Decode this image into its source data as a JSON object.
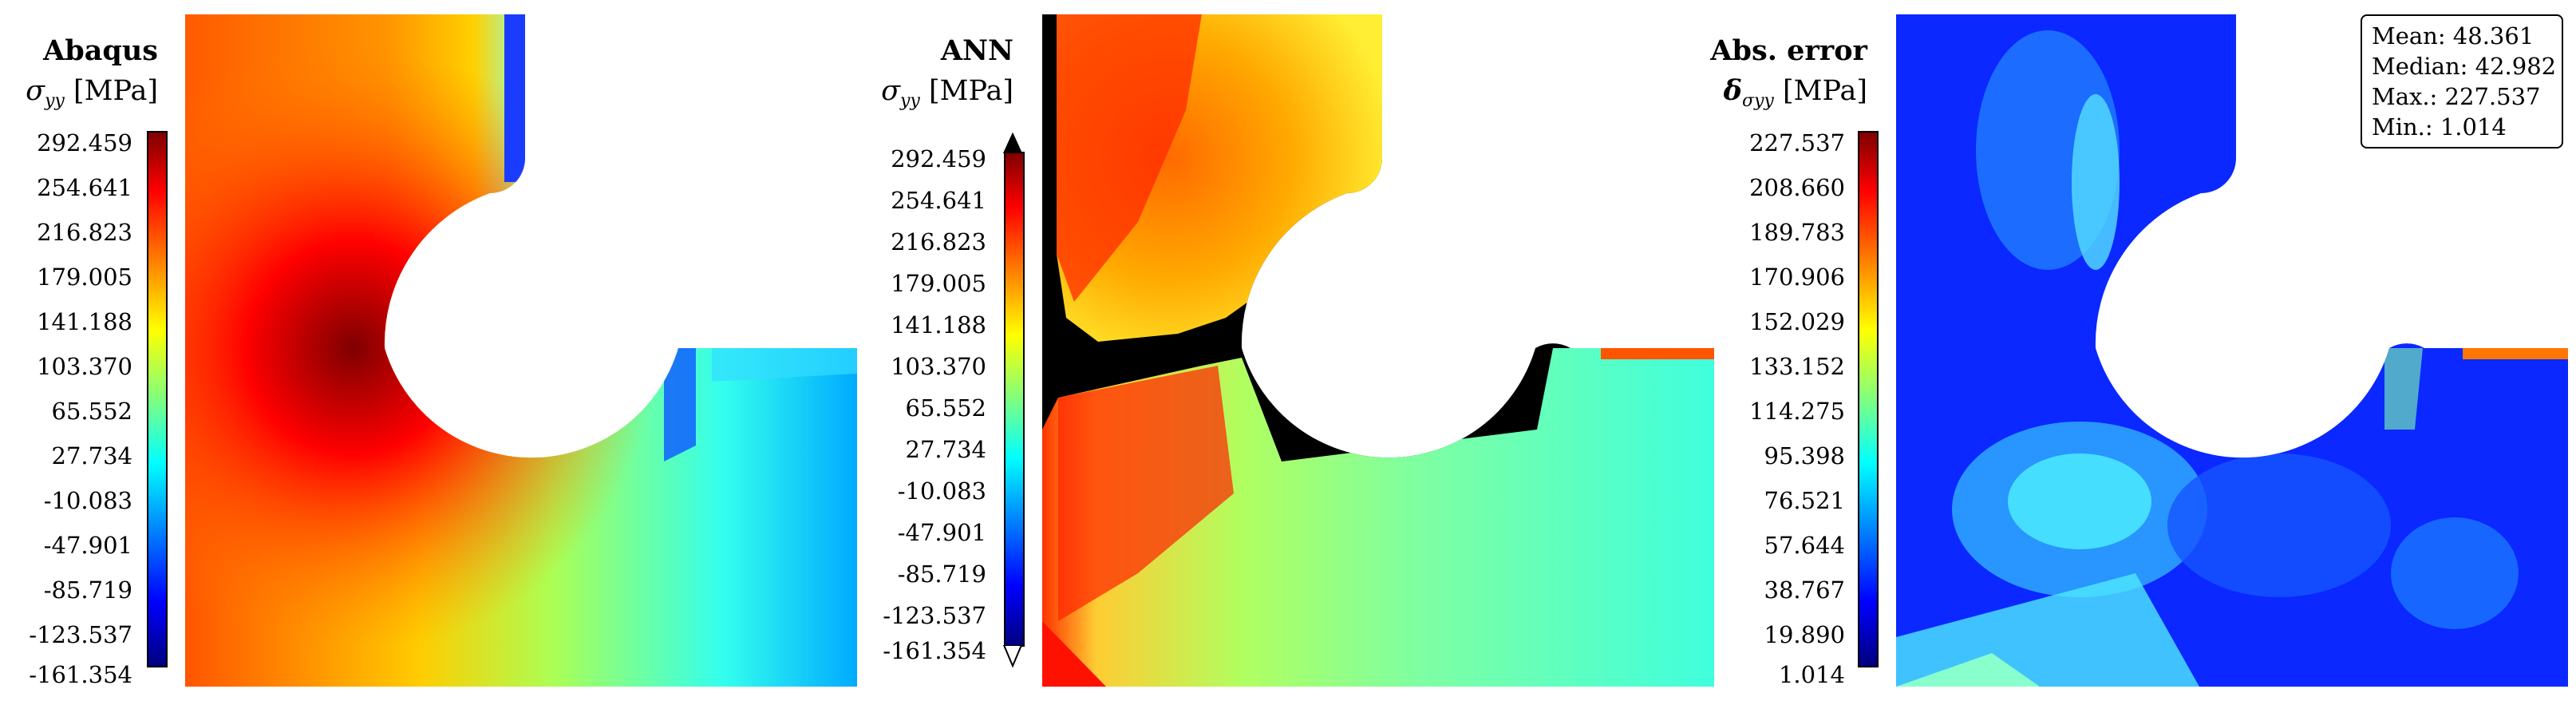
{
  "chart_data": [
    {
      "type": "heatmap",
      "title": "Abaqus",
      "colorbar_label": "σyy [MPa]",
      "colorbar_ticks": [
        "292.459",
        "254.641",
        "216.823",
        "179.005",
        "141.188",
        "103.370",
        "65.552",
        "27.734",
        "-10.083",
        "-47.901",
        "-85.719",
        "-123.537",
        "-161.354"
      ],
      "colorbar_range": [
        -161.354,
        292.459
      ],
      "colormap": "jet"
    },
    {
      "type": "heatmap",
      "title": "ANN",
      "colorbar_label": "σyy [MPa]",
      "colorbar_ticks": [
        "292.459",
        "254.641",
        "216.823",
        "179.005",
        "141.188",
        "103.370",
        "65.552",
        "27.734",
        "-10.083",
        "-47.901",
        "-85.719",
        "-123.537",
        "-161.354"
      ],
      "colorbar_range": [
        -161.354,
        292.459
      ],
      "colorbar_extensions": {
        "above": "#000000",
        "below": "#ffffff"
      },
      "colormap": "jet"
    },
    {
      "type": "heatmap",
      "title": "Abs. error",
      "colorbar_label": "δσyy [MPa]",
      "colorbar_ticks": [
        "227.537",
        "208.660",
        "189.783",
        "170.906",
        "152.029",
        "133.152",
        "114.275",
        "95.398",
        "76.521",
        "57.644",
        "38.767",
        "19.890",
        "1.014"
      ],
      "colorbar_range": [
        1.014,
        227.537
      ],
      "colormap": "jet",
      "stats": {
        "mean": "Mean: 48.361",
        "median": "Median: 42.982",
        "max": "Max.: 227.537",
        "min": "Min.: 1.014"
      }
    }
  ],
  "labels": {
    "p1_title": "Abaqus",
    "p2_title": "ANN",
    "p3_title": "Abs. error",
    "sigma": "σ",
    "delta": "δ",
    "sub_yy": "yy",
    "sub_sigma_yy": "σyy",
    "unit": "[MPa]"
  },
  "colors": {
    "jet_low": "#00007f",
    "jet_high": "#7f0000"
  }
}
